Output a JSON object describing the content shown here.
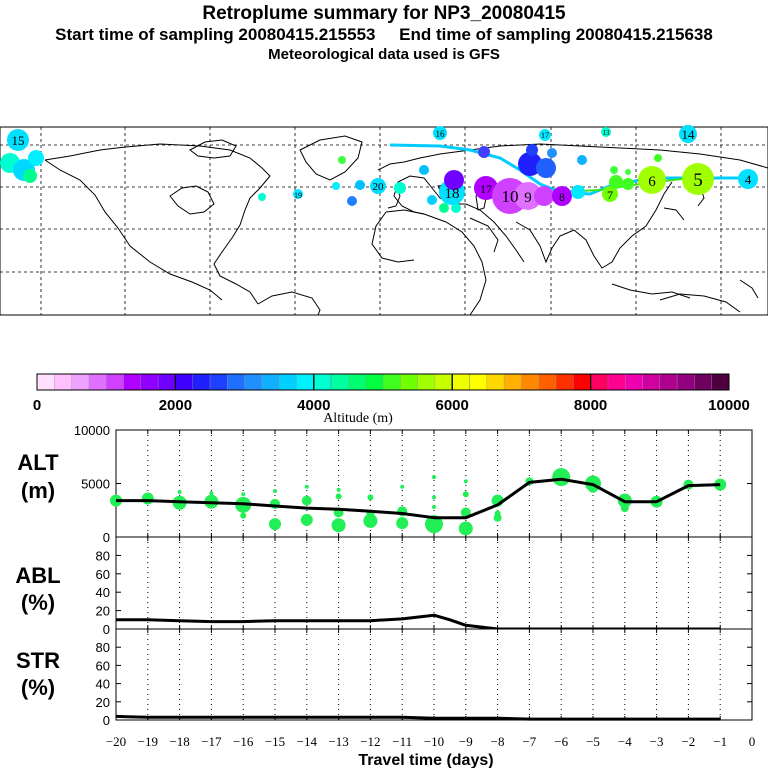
{
  "header": {
    "title": "Retroplume summary for NP3_20080415",
    "sampling": "Start time of sampling 20080415.215553     End time of sampling 20080415.215638",
    "met": "Meteorological data used is GFS"
  },
  "map": {
    "plume_labels": [
      "15",
      "16",
      "17",
      "13",
      "14",
      "19",
      "20",
      "18",
      "17",
      "10",
      "9",
      "8",
      "7",
      "6",
      "5",
      "4"
    ]
  },
  "colorbar": {
    "colors": [
      "#ffe0ff",
      "#ffc0ff",
      "#f0a0ff",
      "#e070ff",
      "#d040ff",
      "#b000ff",
      "#9000ff",
      "#7000ff",
      "#4000ff",
      "#2020ff",
      "#2040ff",
      "#2070ff",
      "#2090ff",
      "#10b0ff",
      "#00d0ff",
      "#00f0ff",
      "#00ffd0",
      "#00ffa0",
      "#00ff70",
      "#00ff40",
      "#40ff20",
      "#70ff00",
      "#a0ff00",
      "#c8ff00",
      "#f0ff00",
      "#ffff00",
      "#ffd800",
      "#ffb000",
      "#ff8800",
      "#ff6000",
      "#ff3000",
      "#ff0000",
      "#ff0060",
      "#ff0090",
      "#f000b0",
      "#d000a0",
      "#b00090",
      "#900080",
      "#700060",
      "#500040"
    ],
    "ticks": [
      "0",
      "2000",
      "4000",
      "6000",
      "8000",
      "10000"
    ],
    "label": "Altitude (m)"
  },
  "chart_data": [
    {
      "type": "line",
      "name": "ALT",
      "ylabel": "ALT\n(m)",
      "ylim": [
        0,
        10000
      ],
      "yticks": [
        "0",
        "5000",
        "10000"
      ],
      "x": [
        -20,
        -19,
        -18,
        -17,
        -16,
        -15,
        -14,
        -13,
        -12,
        -11,
        -10,
        -9,
        -8,
        -7,
        -6,
        -5,
        -4,
        -3,
        -2,
        -1
      ],
      "values": [
        3400,
        3400,
        3300,
        3200,
        3100,
        2900,
        2700,
        2600,
        2400,
        2200,
        1800,
        1800,
        3000,
        5100,
        5400,
        4900,
        3300,
        3300,
        4800,
        4900
      ],
      "scatter": [
        [
          -20,
          3400,
          6
        ],
        [
          -19,
          3600,
          6
        ],
        [
          -18,
          3200,
          7
        ],
        [
          -18,
          4200,
          2
        ],
        [
          -17,
          3300,
          7
        ],
        [
          -17,
          4100,
          2
        ],
        [
          -16,
          3000,
          8
        ],
        [
          -16,
          2000,
          3
        ],
        [
          -16,
          4000,
          2
        ],
        [
          -15,
          3100,
          5
        ],
        [
          -15,
          1200,
          6
        ],
        [
          -15,
          4300,
          2
        ],
        [
          -14,
          1600,
          6
        ],
        [
          -14,
          3400,
          5
        ],
        [
          -14,
          4700,
          2
        ],
        [
          -13,
          1100,
          7
        ],
        [
          -13,
          2300,
          5
        ],
        [
          -13,
          3800,
          3
        ],
        [
          -13,
          4400,
          2
        ],
        [
          -12,
          1500,
          7
        ],
        [
          -12,
          3700,
          3
        ],
        [
          -12,
          2200,
          4
        ],
        [
          -11,
          1300,
          6
        ],
        [
          -11,
          2400,
          5
        ],
        [
          -11,
          4700,
          2
        ],
        [
          -10,
          1200,
          9
        ],
        [
          -10,
          2800,
          2
        ],
        [
          -10,
          3700,
          2
        ],
        [
          -10,
          5600,
          2
        ],
        [
          -9,
          800,
          7
        ],
        [
          -9,
          2300,
          5
        ],
        [
          -9,
          4000,
          3
        ],
        [
          -9,
          5200,
          2
        ],
        [
          -8,
          1800,
          4
        ],
        [
          -8,
          3400,
          6
        ],
        [
          -8,
          2200,
          3
        ],
        [
          -7,
          5200,
          4
        ],
        [
          -6,
          5600,
          9
        ],
        [
          -5,
          5000,
          8
        ],
        [
          -5,
          4600,
          5
        ],
        [
          -4,
          3400,
          7
        ],
        [
          -4,
          2700,
          4
        ],
        [
          -3,
          3300,
          6
        ],
        [
          -2,
          4900,
          5
        ],
        [
          -1,
          4900,
          6
        ]
      ]
    },
    {
      "type": "line",
      "name": "ABL",
      "ylabel": "ABL\n(%)",
      "ylim": [
        0,
        100
      ],
      "yticks": [
        "0",
        "20",
        "40",
        "60",
        "80"
      ],
      "x": [
        -20,
        -19,
        -18,
        -17,
        -16,
        -15,
        -14,
        -13,
        -12,
        -11,
        -10,
        -9.5,
        -9,
        -8,
        -7,
        -6,
        -5,
        -4,
        -3,
        -2,
        -1
      ],
      "values": [
        10,
        10,
        9,
        8,
        8,
        9,
        9,
        9,
        9,
        11,
        15,
        10,
        4,
        0,
        0,
        0,
        0,
        0,
        0,
        0,
        0
      ]
    },
    {
      "type": "line",
      "name": "STR",
      "ylabel": "STR\n(%)",
      "ylim": [
        0,
        100
      ],
      "yticks": [
        "0",
        "20",
        "40",
        "60",
        "80"
      ],
      "x": [
        -20,
        -19,
        -18,
        -17,
        -16,
        -15,
        -14,
        -13,
        -12,
        -11,
        -10,
        -9,
        -8,
        -7,
        -6,
        -5,
        -4,
        -3,
        -2,
        -1
      ],
      "values": [
        4,
        3,
        3,
        3,
        3,
        3,
        3,
        3,
        3,
        3,
        2,
        2,
        2,
        1,
        1,
        1,
        1,
        1,
        1,
        1
      ]
    },
    {
      "type": "axis",
      "xlabel": "Travel time (days)",
      "xlim": [
        -20,
        0
      ],
      "xticks": [
        "−20",
        "−19",
        "−18",
        "−17",
        "−16",
        "−15",
        "−14",
        "−13",
        "−12",
        "−11",
        "−10",
        "−9",
        "−8",
        "−7",
        "−6",
        "−5",
        "−4",
        "−3",
        "−2",
        "−1",
        "0"
      ]
    }
  ]
}
